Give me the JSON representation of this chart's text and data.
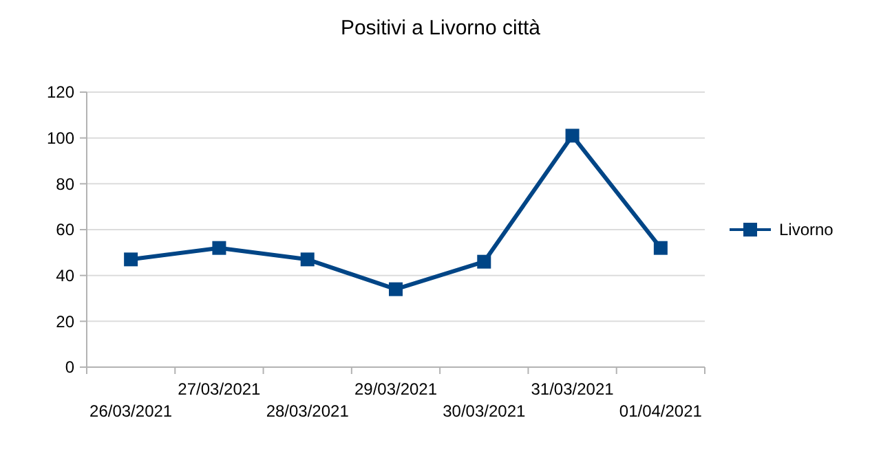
{
  "chart_data": {
    "type": "line",
    "title": "Positivi a Livorno città",
    "categories": [
      "26/03/2021",
      "27/03/2021",
      "28/03/2021",
      "29/03/2021",
      "30/03/2021",
      "31/03/2021",
      "01/04/2021"
    ],
    "series": [
      {
        "name": "Livorno",
        "color": "#004586",
        "values": [
          47,
          52,
          47,
          34,
          46,
          101,
          52
        ]
      }
    ],
    "ylim": [
      0,
      120
    ],
    "yticks": [
      0,
      20,
      40,
      60,
      80,
      100,
      120
    ],
    "grid": "y",
    "legend": "right",
    "marker": "square",
    "line_style": "solid"
  }
}
